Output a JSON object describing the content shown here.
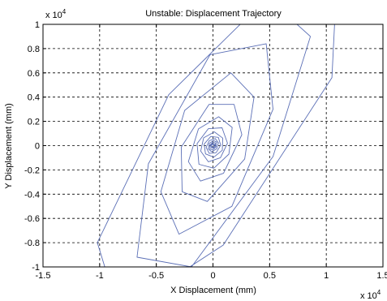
{
  "chart_data": {
    "type": "line",
    "title": "Unstable: Displacement Trajectory",
    "xlabel": "X Displacement (mm)",
    "ylabel": "Y Displacement (mm)",
    "xlim": [
      -1.5,
      1.5
    ],
    "ylim": [
      -1,
      1
    ],
    "x_ticks": [
      "-1.5",
      "-1",
      "-0.5",
      "0",
      "0.5",
      "1",
      "1.5"
    ],
    "y_ticks": [
      "-1",
      "-0.8",
      "-0.6",
      "-0.4",
      "-0.2",
      "0",
      "0.2",
      "0.4",
      "0.6",
      "0.8",
      "1"
    ],
    "x_exponent": "x 10",
    "x_exponent_power": "4",
    "y_exponent": "x 10",
    "y_exponent_power": "4",
    "grid": true,
    "grid_style": "dashed",
    "line_color": "#5b6fb6",
    "series": [
      {
        "x": [
          0.007,
          0.008,
          -0.008,
          -0.012,
          -0.0005,
          0.014,
          0.014,
          -0.005,
          -0.02,
          -0.016,
          0.004,
          0.023,
          0.02,
          -0.003,
          -0.028,
          -0.026,
          0.0,
          0.028,
          0.033,
          0.004,
          -0.033,
          -0.041,
          -0.012,
          0.033,
          0.049,
          0.02,
          -0.033,
          -0.06,
          -0.033,
          0.028,
          0.068,
          0.047,
          -0.02,
          -0.078,
          -0.066,
          0.008,
          0.082,
          0.086,
          0.012,
          -0.082,
          -0.108,
          -0.041,
          0.066,
          0.128,
          0.08,
          -0.041,
          -0.14,
          -0.124,
          0.008,
          0.14,
          0.17,
          0.05,
          -0.128,
          -0.217,
          -0.11,
          0.093,
          0.255,
          0.186,
          -0.035,
          -0.28,
          -0.272,
          -0.05,
          0.28,
          0.362,
          0.158,
          -0.25,
          -0.46,
          -0.3,
          0.167,
          0.53,
          0.47,
          -0.026,
          -0.57,
          -0.67,
          -0.19,
          0.53,
          0.86,
          0.48,
          -0.39,
          -1.02,
          -0.83,
          0.09,
          1.05,
          1.1
        ],
        "y": [
          0.0,
          0.011,
          0.008,
          -0.006,
          -0.015,
          -0.006,
          0.011,
          0.017,
          0.004,
          -0.017,
          -0.021,
          -0.002,
          0.023,
          0.027,
          0.004,
          -0.029,
          -0.035,
          -0.01,
          0.029,
          0.042,
          0.018,
          -0.027,
          -0.05,
          -0.027,
          0.023,
          0.058,
          0.041,
          -0.015,
          -0.064,
          -0.058,
          0.004,
          0.068,
          0.075,
          0.013,
          -0.068,
          -0.095,
          -0.038,
          0.062,
          0.114,
          0.064,
          -0.045,
          -0.133,
          -0.1,
          0.02,
          0.147,
          0.14,
          0.017,
          -0.154,
          -0.186,
          -0.07,
          0.15,
          0.238,
          0.138,
          -0.132,
          -0.292,
          -0.228,
          0.09,
          0.34,
          0.34,
          -0.013,
          -0.38,
          -0.46,
          -0.11,
          0.4,
          0.6,
          0.29,
          -0.38,
          -0.73,
          -0.5,
          0.3,
          0.84,
          0.75,
          -0.15,
          -0.92,
          -1.0,
          -0.09,
          0.9,
          1.22,
          0.42,
          -0.8,
          -1.38,
          -0.82,
          0.56,
          1.5
        ]
      }
    ]
  }
}
